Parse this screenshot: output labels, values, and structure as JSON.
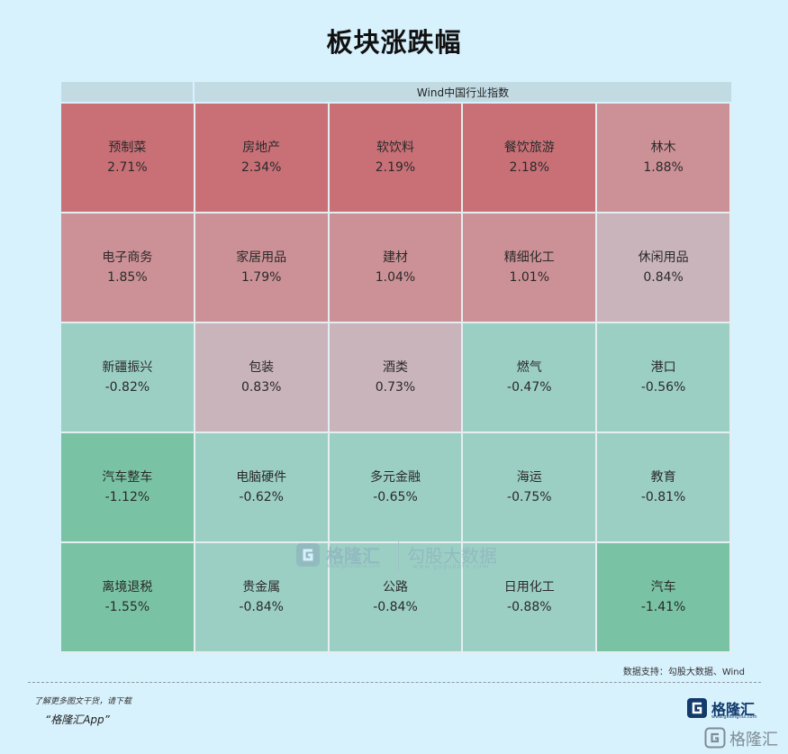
{
  "title": "板块涨跌幅",
  "header": {
    "left": "",
    "right": "Wind中国行业指数"
  },
  "chart_data": {
    "type": "heatmap",
    "title": "板块涨跌幅",
    "columns_header": "Wind中国行业指数",
    "unit": "%",
    "rows": 5,
    "cols": 5,
    "cells": [
      {
        "name": "预制菜",
        "value": 2.71,
        "label": "2.71%"
      },
      {
        "name": "房地产",
        "value": 2.34,
        "label": "2.34%"
      },
      {
        "name": "软饮料",
        "value": 2.19,
        "label": "2.19%"
      },
      {
        "name": "餐饮旅游",
        "value": 2.18,
        "label": "2.18%"
      },
      {
        "name": "林木",
        "value": 1.88,
        "label": "1.88%"
      },
      {
        "name": "电子商务",
        "value": 1.85,
        "label": "1.85%"
      },
      {
        "name": "家居用品",
        "value": 1.79,
        "label": "1.79%"
      },
      {
        "name": "建材",
        "value": 1.04,
        "label": "1.04%"
      },
      {
        "name": "精细化工",
        "value": 1.01,
        "label": "1.01%"
      },
      {
        "name": "休闲用品",
        "value": 0.84,
        "label": "0.84%"
      },
      {
        "name": "新疆振兴",
        "value": -0.82,
        "label": "-0.82%"
      },
      {
        "name": "包装",
        "value": 0.83,
        "label": "0.83%"
      },
      {
        "name": "酒类",
        "value": 0.73,
        "label": "0.73%"
      },
      {
        "name": "燃气",
        "value": -0.47,
        "label": "-0.47%"
      },
      {
        "name": "港口",
        "value": -0.56,
        "label": "-0.56%"
      },
      {
        "name": "汽车整车",
        "value": -1.12,
        "label": "-1.12%"
      },
      {
        "name": "电脑硬件",
        "value": -0.62,
        "label": "-0.62%"
      },
      {
        "name": "多元金融",
        "value": -0.65,
        "label": "-0.65%"
      },
      {
        "name": "海运",
        "value": -0.75,
        "label": "-0.75%"
      },
      {
        "name": "教育",
        "value": -0.81,
        "label": "-0.81%"
      },
      {
        "name": "离境退税",
        "value": -1.55,
        "label": "-1.55%"
      },
      {
        "name": "贵金属",
        "value": -0.84,
        "label": "-0.84%"
      },
      {
        "name": "公路",
        "value": -0.84,
        "label": "-0.84%"
      },
      {
        "name": "日用化工",
        "value": -0.88,
        "label": "-0.88%"
      },
      {
        "name": "汽车",
        "value": -1.41,
        "label": "-1.41%"
      }
    ]
  },
  "colors": {
    "positive_strong": "#c97077",
    "positive_light": "#cc9196",
    "positive_faint": "#c9b4bc",
    "negative_light": "#9ccfc4",
    "negative_strong": "#79c3a4"
  },
  "watermark": {
    "brand": "格隆汇",
    "brand_url": "www.gelonghui.com",
    "data_brand": "勾股大数据",
    "data_url": "www.gogudata.com"
  },
  "source": "数据支持：勾股大数据、Wind",
  "promo": {
    "line1": "了解更多图文干货，请下载",
    "line2": "“格隆汇App”"
  },
  "brand": {
    "name": "格隆汇",
    "url": "www.gelonghui.com"
  },
  "corner_mark": "格隆汇"
}
